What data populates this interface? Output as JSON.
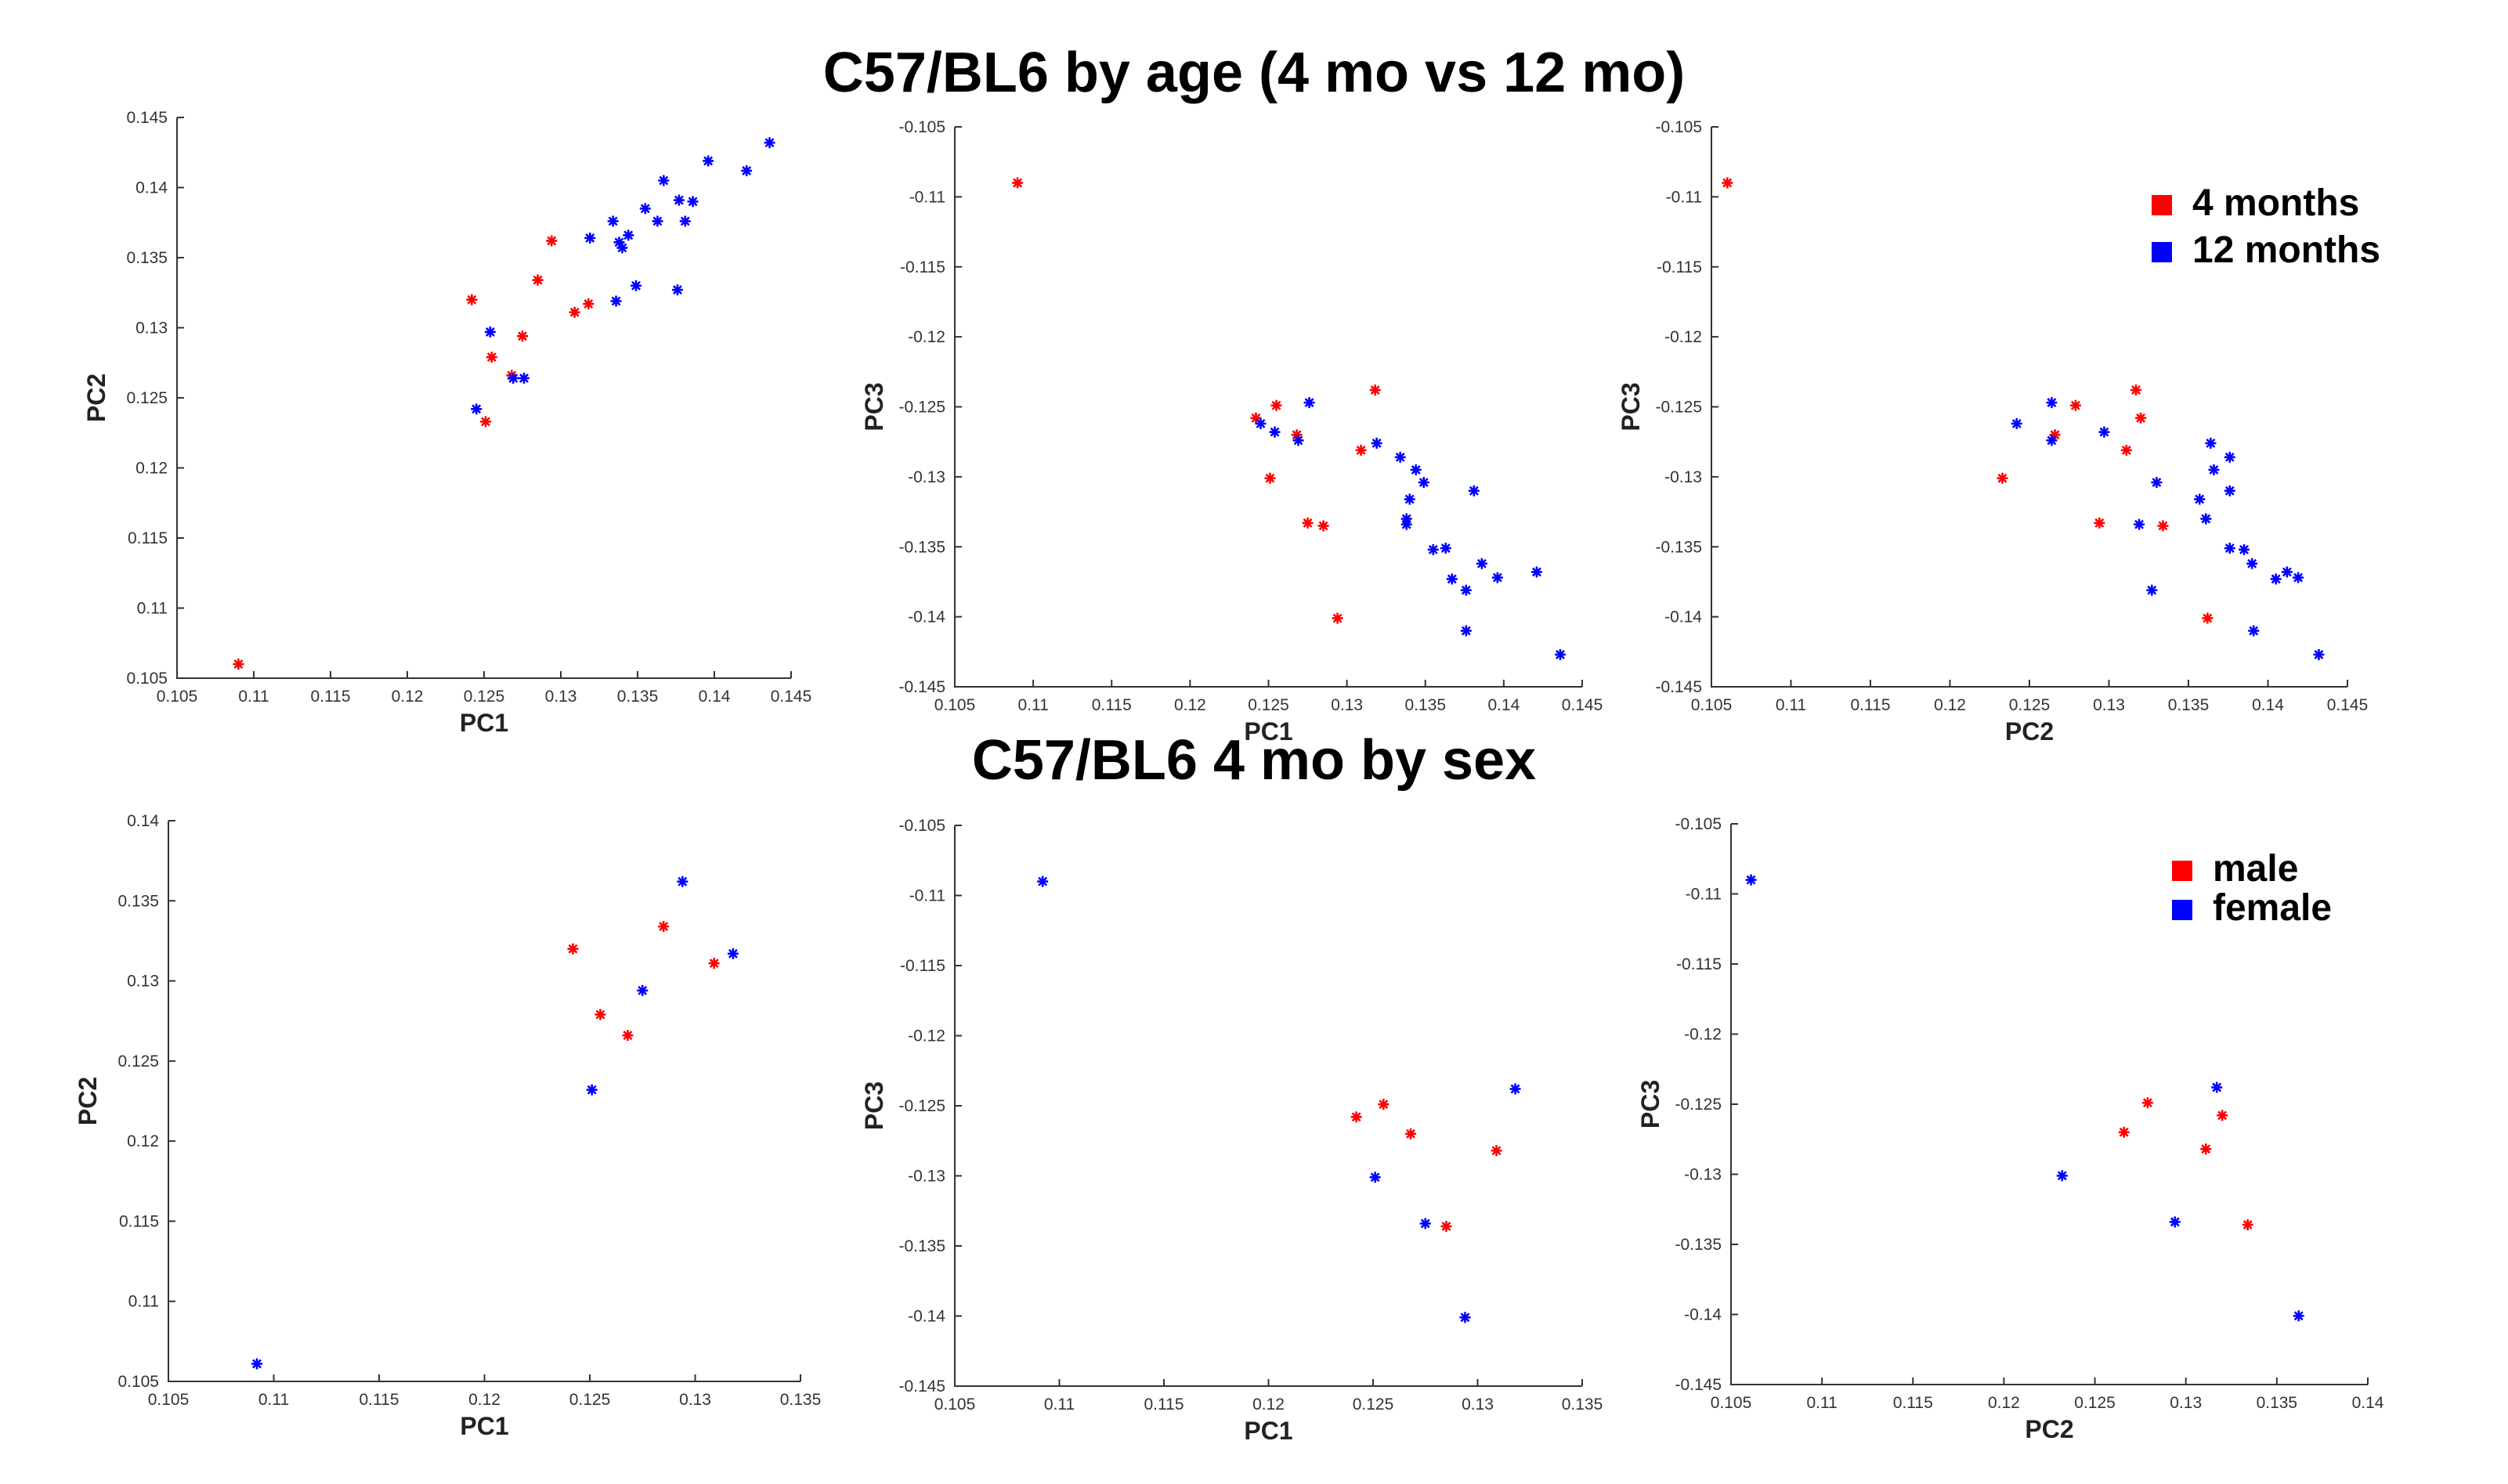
{
  "titles": {
    "top": "C57/BL6 by age (4 mo vs 12 mo)",
    "bottom": "C57/BL6 4 mo by sex"
  },
  "colors": {
    "red": "#ff0000",
    "blue": "#0000ff"
  },
  "chart_data": [
    {
      "type": "scatter",
      "xlabel": "PC1",
      "ylabel": "PC2",
      "xlim": [
        0.105,
        0.145
      ],
      "ylim": [
        0.105,
        0.145
      ],
      "xticks": [
        "0.105",
        "0.11",
        "0.115",
        "0.12",
        "0.125",
        "0.13",
        "0.135",
        "0.14",
        "0.145"
      ],
      "yticks": [
        "0.105",
        "0.11",
        "0.115",
        "0.12",
        "0.125",
        "0.13",
        "0.135",
        "0.14",
        "0.145"
      ],
      "legend": null,
      "series": [
        {
          "name": "4 months",
          "color": "red",
          "points": [
            [
              0.109,
              0.106
            ],
            [
              0.1242,
              0.132
            ],
            [
              0.1251,
              0.1233
            ],
            [
              0.1255,
              0.1279
            ],
            [
              0.1268,
              0.1266
            ],
            [
              0.1275,
              0.1294
            ],
            [
              0.1285,
              0.1334
            ],
            [
              0.1294,
              0.1362
            ],
            [
              0.1309,
              0.1311
            ],
            [
              0.1318,
              0.1317
            ]
          ]
        },
        {
          "name": "12 months",
          "color": "blue",
          "points": [
            [
              0.1245,
              0.1242
            ],
            [
              0.1254,
              0.1297
            ],
            [
              0.1269,
              0.1264
            ],
            [
              0.1276,
              0.1264
            ],
            [
              0.1319,
              0.1364
            ],
            [
              0.1334,
              0.1376
            ],
            [
              0.1338,
              0.1361
            ],
            [
              0.1336,
              0.1319
            ],
            [
              0.134,
              0.1357
            ],
            [
              0.1344,
              0.1366
            ],
            [
              0.1349,
              0.133
            ],
            [
              0.1355,
              0.1385
            ],
            [
              0.1363,
              0.1376
            ],
            [
              0.1367,
              0.1405
            ],
            [
              0.1376,
              0.1327
            ],
            [
              0.1377,
              0.1391
            ],
            [
              0.1381,
              0.1376
            ],
            [
              0.1386,
              0.139
            ],
            [
              0.1396,
              0.1419
            ],
            [
              0.1421,
              0.1412
            ],
            [
              0.1436,
              0.1432
            ]
          ]
        }
      ]
    },
    {
      "type": "scatter",
      "xlabel": "PC1",
      "ylabel": "PC3",
      "xlim": [
        0.105,
        0.145
      ],
      "ylim": [
        -0.145,
        -0.105
      ],
      "xticks": [
        "0.105",
        "0.11",
        "0.115",
        "0.12",
        "0.125",
        "0.13",
        "0.135",
        "0.14",
        "0.145"
      ],
      "yticks": [
        "-0.145",
        "-0.14",
        "-0.135",
        "-0.13",
        "-0.125",
        "-0.12",
        "-0.115",
        "-0.11",
        "-0.105"
      ],
      "legend": null,
      "series": [
        {
          "name": "4 months",
          "color": "red",
          "points": [
            [
              0.109,
              -0.109
            ],
            [
              0.1242,
              -0.1258
            ],
            [
              0.1251,
              -0.1301
            ],
            [
              0.1255,
              -0.1249
            ],
            [
              0.1268,
              -0.127
            ],
            [
              0.1275,
              -0.1333
            ],
            [
              0.1285,
              -0.1335
            ],
            [
              0.1294,
              -0.1401
            ],
            [
              0.1309,
              -0.1281
            ],
            [
              0.1318,
              -0.1238
            ]
          ]
        },
        {
          "name": "12 months",
          "color": "blue",
          "points": [
            [
              0.1245,
              -0.1262
            ],
            [
              0.1254,
              -0.1268
            ],
            [
              0.1269,
              -0.1274
            ],
            [
              0.1276,
              -0.1247
            ],
            [
              0.1319,
              -0.1276
            ],
            [
              0.1334,
              -0.1286
            ],
            [
              0.1338,
              -0.133
            ],
            [
              0.1338,
              -0.1334
            ],
            [
              0.134,
              -0.1316
            ],
            [
              0.1344,
              -0.1295
            ],
            [
              0.1349,
              -0.1304
            ],
            [
              0.1355,
              -0.1352
            ],
            [
              0.1363,
              -0.1351
            ],
            [
              0.1367,
              -0.1373
            ],
            [
              0.1376,
              -0.1381
            ],
            [
              0.1376,
              -0.141
            ],
            [
              0.1381,
              -0.131
            ],
            [
              0.1386,
              -0.1362
            ],
            [
              0.1396,
              -0.1372
            ],
            [
              0.1421,
              -0.1368
            ],
            [
              0.1436,
              -0.1427
            ]
          ]
        }
      ]
    },
    {
      "type": "scatter",
      "xlabel": "PC2",
      "ylabel": "PC3",
      "xlim": [
        0.105,
        0.145
      ],
      "ylim": [
        -0.145,
        -0.105
      ],
      "xticks": [
        "0.105",
        "0.11",
        "0.115",
        "0.12",
        "0.125",
        "0.13",
        "0.135",
        "0.14",
        "0.145"
      ],
      "yticks": [
        "-0.145",
        "-0.14",
        "-0.135",
        "-0.13",
        "-0.125",
        "-0.12",
        "-0.115",
        "-0.11",
        "-0.105"
      ],
      "legend": [
        "4 months",
        "12 months"
      ],
      "series": [
        {
          "name": "4 months",
          "color": "red",
          "points": [
            [
              0.106,
              -0.109
            ],
            [
              0.1233,
              -0.1301
            ],
            [
              0.1266,
              -0.127
            ],
            [
              0.1279,
              -0.1249
            ],
            [
              0.1294,
              -0.1333
            ],
            [
              0.1311,
              -0.1281
            ],
            [
              0.1317,
              -0.1238
            ],
            [
              0.132,
              -0.1258
            ],
            [
              0.1334,
              -0.1335
            ],
            [
              0.1362,
              -0.1401
            ]
          ]
        },
        {
          "name": "12 months",
          "color": "blue",
          "points": [
            [
              0.1242,
              -0.1262
            ],
            [
              0.1264,
              -0.1274
            ],
            [
              0.1264,
              -0.1247
            ],
            [
              0.1297,
              -0.1268
            ],
            [
              0.1319,
              -0.1334
            ],
            [
              0.1327,
              -0.1381
            ],
            [
              0.133,
              -0.1304
            ],
            [
              0.1357,
              -0.1316
            ],
            [
              0.1361,
              -0.133
            ],
            [
              0.1364,
              -0.1276
            ],
            [
              0.1366,
              -0.1295
            ],
            [
              0.1376,
              -0.1286
            ],
            [
              0.1376,
              -0.1351
            ],
            [
              0.1376,
              -0.131
            ],
            [
              0.1385,
              -0.1352
            ],
            [
              0.139,
              -0.1362
            ],
            [
              0.1391,
              -0.141
            ],
            [
              0.1405,
              -0.1373
            ],
            [
              0.1412,
              -0.1368
            ],
            [
              0.1419,
              -0.1372
            ],
            [
              0.1432,
              -0.1427
            ]
          ]
        }
      ]
    },
    {
      "type": "scatter",
      "xlabel": "PC1",
      "ylabel": "PC2",
      "xlim": [
        0.105,
        0.135
      ],
      "ylim": [
        0.105,
        0.14
      ],
      "xticks": [
        "0.105",
        "0.11",
        "0.115",
        "0.12",
        "0.125",
        "0.13",
        "0.135"
      ],
      "yticks": [
        "0.105",
        "0.11",
        "0.115",
        "0.12",
        "0.125",
        "0.13",
        "0.135",
        "0.14"
      ],
      "legend": null,
      "series": [
        {
          "name": "male",
          "color": "red",
          "points": [
            [
              0.1242,
              0.132
            ],
            [
              0.1255,
              0.1279
            ],
            [
              0.1268,
              0.1266
            ],
            [
              0.1285,
              0.1334
            ],
            [
              0.1309,
              0.1311
            ]
          ]
        },
        {
          "name": "female",
          "color": "blue",
          "points": [
            [
              0.1092,
              0.1061
            ],
            [
              0.1251,
              0.1232
            ],
            [
              0.1275,
              0.1294
            ],
            [
              0.1294,
              0.1362
            ],
            [
              0.1318,
              0.1317
            ]
          ]
        }
      ]
    },
    {
      "type": "scatter",
      "xlabel": "PC1",
      "ylabel": "PC3",
      "xlim": [
        0.105,
        0.135
      ],
      "ylim": [
        -0.145,
        -0.105
      ],
      "xticks": [
        "0.105",
        "0.11",
        "0.115",
        "0.12",
        "0.125",
        "0.13",
        "0.135"
      ],
      "yticks": [
        "-0.145",
        "-0.14",
        "-0.135",
        "-0.13",
        "-0.125",
        "-0.12",
        "-0.115",
        "-0.11",
        "-0.105"
      ],
      "legend": null,
      "series": [
        {
          "name": "male",
          "color": "red",
          "points": [
            [
              0.1242,
              -0.1258
            ],
            [
              0.1255,
              -0.1249
            ],
            [
              0.1268,
              -0.127
            ],
            [
              0.1285,
              -0.1336
            ],
            [
              0.1309,
              -0.1282
            ]
          ]
        },
        {
          "name": "female",
          "color": "blue",
          "points": [
            [
              0.1092,
              -0.109
            ],
            [
              0.1251,
              -0.1301
            ],
            [
              0.1275,
              -0.1334
            ],
            [
              0.1294,
              -0.1401
            ],
            [
              0.1318,
              -0.1238
            ]
          ]
        }
      ]
    },
    {
      "type": "scatter",
      "xlabel": "PC2",
      "ylabel": "PC3",
      "xlim": [
        0.105,
        0.14
      ],
      "ylim": [
        -0.145,
        -0.105
      ],
      "xticks": [
        "0.105",
        "0.11",
        "0.115",
        "0.12",
        "0.125",
        "0.13",
        "0.135",
        "0.14"
      ],
      "yticks": [
        "-0.145",
        "-0.14",
        "-0.135",
        "-0.13",
        "-0.125",
        "-0.12",
        "-0.115",
        "-0.11",
        "-0.105"
      ],
      "legend": [
        "male",
        "female"
      ],
      "series": [
        {
          "name": "male",
          "color": "red",
          "points": [
            [
              0.1266,
              -0.127
            ],
            [
              0.1279,
              -0.1249
            ],
            [
              0.1311,
              -0.1282
            ],
            [
              0.132,
              -0.1258
            ],
            [
              0.1334,
              -0.1336
            ]
          ]
        },
        {
          "name": "female",
          "color": "blue",
          "points": [
            [
              0.1061,
              -0.109
            ],
            [
              0.1232,
              -0.1301
            ],
            [
              0.1294,
              -0.1334
            ],
            [
              0.1317,
              -0.1238
            ],
            [
              0.1362,
              -0.1401
            ]
          ]
        }
      ]
    }
  ]
}
